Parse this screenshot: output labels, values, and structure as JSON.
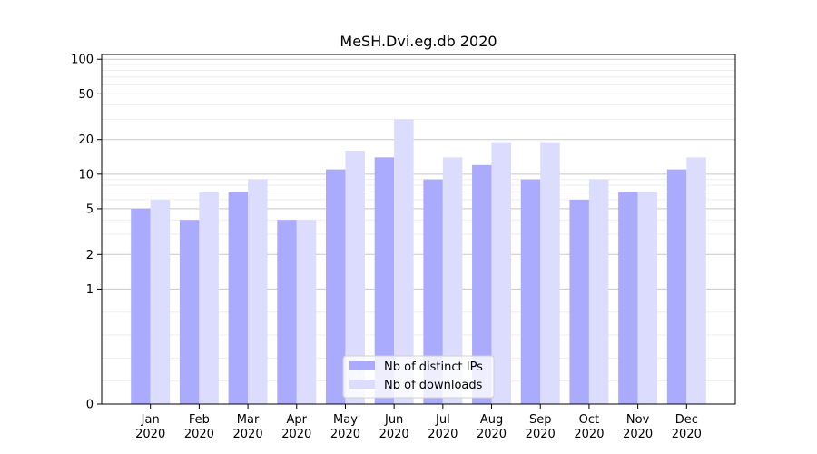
{
  "chart_data": {
    "type": "bar",
    "title": "MeSH.Dvi.eg.db 2020",
    "xlabel": "",
    "ylabel": "",
    "y_scale": "symlog",
    "ylim": [
      0,
      110
    ],
    "y_ticks": [
      0,
      1,
      2,
      5,
      10,
      20,
      50,
      100
    ],
    "grid": true,
    "legend_position": "bottom-center",
    "categories": [
      {
        "month": "Jan",
        "year": "2020"
      },
      {
        "month": "Feb",
        "year": "2020"
      },
      {
        "month": "Mar",
        "year": "2020"
      },
      {
        "month": "Apr",
        "year": "2020"
      },
      {
        "month": "May",
        "year": "2020"
      },
      {
        "month": "Jun",
        "year": "2020"
      },
      {
        "month": "Jul",
        "year": "2020"
      },
      {
        "month": "Aug",
        "year": "2020"
      },
      {
        "month": "Sep",
        "year": "2020"
      },
      {
        "month": "Oct",
        "year": "2020"
      },
      {
        "month": "Nov",
        "year": "2020"
      },
      {
        "month": "Dec",
        "year": "2020"
      }
    ],
    "series": [
      {
        "name": "Nb of distinct IPs",
        "color": "#aaaaff",
        "values": [
          5,
          4,
          7,
          4,
          11,
          14,
          9,
          12,
          9,
          6,
          7,
          11
        ]
      },
      {
        "name": "Nb of downloads",
        "color": "#dcdcff",
        "values": [
          6,
          7,
          9,
          4,
          16,
          30,
          14,
          19,
          19,
          9,
          7,
          14
        ]
      }
    ]
  }
}
